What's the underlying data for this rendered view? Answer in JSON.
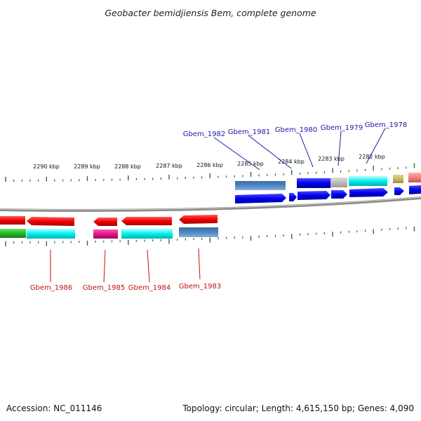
{
  "title": "Geobacter bemidjiensis Bem, complete genome",
  "accession": "Accession: NC_011146",
  "summary": "Topology: circular; Length: 4,615,150 bp; Genes: 4,090",
  "scale_labels": [
    "2290 kbp",
    "2289 kbp",
    "2288 kbp",
    "2287 kbp",
    "2286 kbp",
    "2285 kbp",
    "2284 kbp",
    "2283 kbp",
    "2282 kbp"
  ],
  "genes_top": [
    "Gbem_1982",
    "Gbem_1981",
    "Gbem_1980",
    "Gbem_1979",
    "Gbem_1978"
  ],
  "genes_bottom": [
    "Gbem_1986",
    "Gbem_1985",
    "Gbem_1984",
    "Gbem_1983"
  ],
  "colors": {
    "forward_gene": "#0000ee",
    "reverse_gene": "#ee1111",
    "top_label": "#1a1aa6",
    "bottom_label": "#c01010",
    "tick": "#1a7a1a",
    "backbone": "#8a8a8a"
  }
}
